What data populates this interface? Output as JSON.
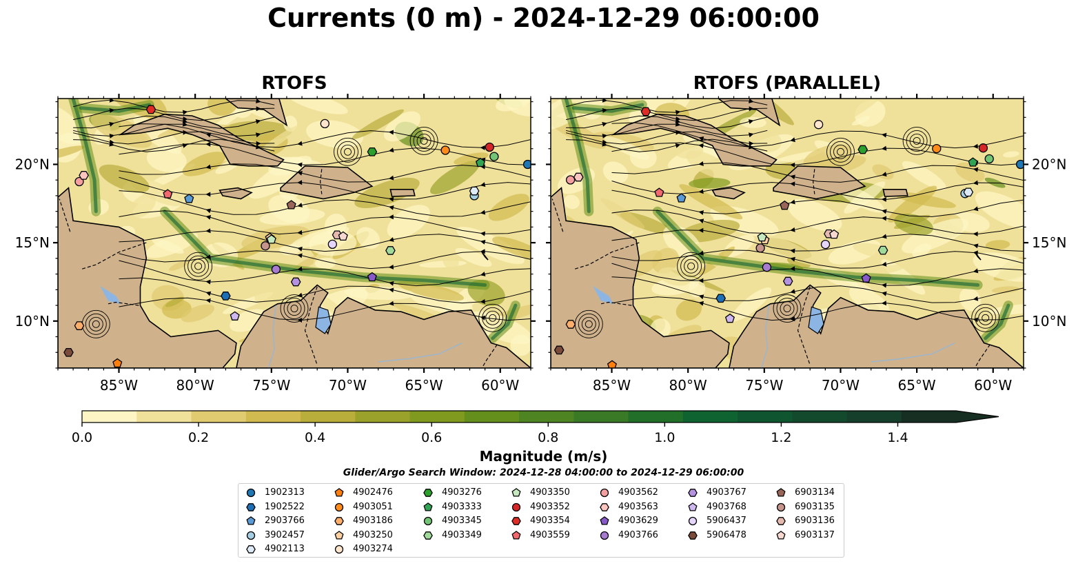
{
  "suptitle": "Currents (0 m) - 2024-12-29 06:00:00",
  "panels": [
    {
      "title": "RTOFS"
    },
    {
      "title": "RTOFS (PARALLEL)"
    }
  ],
  "colorbar_title": "Magnitude (m/s)",
  "search_window": "Glider/Argo Search Window: 2024-12-28 04:00:00 to 2024-12-29 06:00:00",
  "colors": {
    "land": "#cfb28b",
    "lake": "#8db5e3",
    "river": "#9fb5c9",
    "cmap": [
      "#fdf6c4",
      "#f0e19a",
      "#e0cb71",
      "#d1ba50",
      "#b9ad3c",
      "#9ba22c",
      "#7f9a1e",
      "#658f1d",
      "#4f8422",
      "#3a7a26",
      "#226f2a",
      "#0f6330",
      "#0e5530",
      "#134a2e",
      "#153e2b",
      "#172f22"
    ]
  },
  "chart_data": {
    "type": "heatmap",
    "title": "Currents (0 m) - 2024-12-29 06:00:00",
    "subplots": [
      "RTOFS",
      "RTOFS (PARALLEL)"
    ],
    "x_range": [
      -89,
      -58
    ],
    "y_range": [
      7,
      24.2
    ],
    "x_ticks": [
      -85,
      -80,
      -75,
      -70,
      -65,
      -60
    ],
    "x_tick_labels": [
      "85°W",
      "80°W",
      "75°W",
      "70°W",
      "65°W",
      "60°W"
    ],
    "y_ticks": [
      10,
      15,
      20
    ],
    "y_tick_labels": [
      "10°N",
      "15°N",
      "20°N"
    ],
    "colorbar": {
      "label": "Magnitude (m/s)",
      "range": [
        0,
        1.5
      ],
      "ticks": [
        0.0,
        0.2,
        0.4,
        0.6,
        0.8,
        1.0,
        1.2,
        1.4
      ],
      "tick_labels": [
        "0.0",
        "0.2",
        "0.4",
        "0.6",
        "0.8",
        "1.0",
        "1.2",
        "1.4"
      ],
      "extend": "max"
    },
    "platforms": [
      {
        "id": "1902313",
        "marker": "circle",
        "color": "#1f77b4",
        "lon": -58.2,
        "lat": 20.0
      },
      {
        "id": "1902522",
        "marker": "hexagon",
        "color": "#1f6fb4",
        "lon": -78.0,
        "lat": 11.6
      },
      {
        "id": "2903766",
        "marker": "pentagon",
        "color": "#5b9bd5",
        "lon": -80.4,
        "lat": 17.8
      },
      {
        "id": "3902457",
        "marker": "circle",
        "color": "#a6cee3",
        "lon": -61.7,
        "lat": 18.0
      },
      {
        "id": "4902113",
        "marker": "hexagon",
        "color": "#deebf7",
        "lon": -61.7,
        "lat": 18.3
      },
      {
        "id": "4902476",
        "marker": "pentagon",
        "color": "#ff7f0e",
        "lon": -85.1,
        "lat": 7.3
      },
      {
        "id": "4903051",
        "marker": "circle",
        "color": "#ff8c1a",
        "lon": -63.6,
        "lat": 20.9
      },
      {
        "id": "4903186",
        "marker": "hexagon",
        "color": "#fdae6b",
        "lon": -87.6,
        "lat": 9.7
      },
      {
        "id": "4903250",
        "marker": "pentagon",
        "color": "#fdd0a2",
        "lon": -75.1,
        "lat": 15.3
      },
      {
        "id": "4903274",
        "marker": "circle",
        "color": "#fee6ce",
        "lon": -71.5,
        "lat": 22.6
      },
      {
        "id": "4903276",
        "marker": "hexagon",
        "color": "#2ca02c",
        "lon": -68.4,
        "lat": 20.8
      },
      {
        "id": "4903333",
        "marker": "pentagon",
        "color": "#31a354",
        "lon": -61.3,
        "lat": 20.1
      },
      {
        "id": "4903345",
        "marker": "circle",
        "color": "#74c476",
        "lon": -60.4,
        "lat": 20.5
      },
      {
        "id": "4903349",
        "marker": "hexagon",
        "color": "#a1d99b",
        "lon": -67.2,
        "lat": 14.5
      },
      {
        "id": "4903350",
        "marker": "pentagon",
        "color": "#c7e9c0",
        "lon": -75.0,
        "lat": 15.2
      },
      {
        "id": "4903352",
        "marker": "circle",
        "color": "#d62728",
        "lon": -60.7,
        "lat": 21.1
      },
      {
        "id": "4903354",
        "marker": "hexagon",
        "color": "#de2d26",
        "lon": -82.9,
        "lat": 23.5
      },
      {
        "id": "4903559",
        "marker": "pentagon",
        "color": "#f0696e",
        "lon": -81.8,
        "lat": 18.1
      },
      {
        "id": "4903562",
        "marker": "circle",
        "color": "#f4a0a0",
        "lon": -87.6,
        "lat": 18.9
      },
      {
        "id": "4903563",
        "marker": "hexagon",
        "color": "#fcc5c0",
        "lon": -87.3,
        "lat": 19.3
      },
      {
        "id": "4903629",
        "marker": "pentagon",
        "color": "#8859c8",
        "lon": -68.4,
        "lat": 12.8
      },
      {
        "id": "4903766",
        "marker": "circle",
        "color": "#a77bd0",
        "lon": -74.7,
        "lat": 13.3
      },
      {
        "id": "4903767",
        "marker": "hexagon",
        "color": "#b592e0",
        "lon": -73.4,
        "lat": 12.5
      },
      {
        "id": "4903768",
        "marker": "pentagon",
        "color": "#cfb7f0",
        "lon": -77.4,
        "lat": 10.3
      },
      {
        "id": "5906437",
        "marker": "circle",
        "color": "#e6d5fb",
        "lon": -71.0,
        "lat": 14.9
      },
      {
        "id": "5906478",
        "marker": "hexagon",
        "color": "#7a4a3a",
        "lon": -88.3,
        "lat": 8.0
      },
      {
        "id": "6903134",
        "marker": "pentagon",
        "color": "#996659",
        "lon": -73.7,
        "lat": 17.4
      },
      {
        "id": "6903135",
        "marker": "circle",
        "color": "#c5948a",
        "lon": -75.4,
        "lat": 14.8
      },
      {
        "id": "6903136",
        "marker": "hexagon",
        "color": "#e5b9b0",
        "lon": -70.7,
        "lat": 15.5
      },
      {
        "id": "6903137",
        "marker": "pentagon",
        "color": "#f6d8d0",
        "lon": -70.3,
        "lat": 15.4
      }
    ]
  }
}
